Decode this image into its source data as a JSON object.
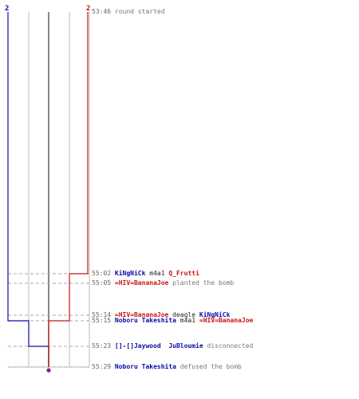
{
  "colors": {
    "ct": "#0a0aa8",
    "t": "#cc1111",
    "grid": "#bbbbbb",
    "center": "#555555",
    "dashed": "#aaaaaa",
    "bomb_marker": "#8a1a8a",
    "text": "#777777"
  },
  "score": {
    "ct": "2",
    "t": "2"
  },
  "chart_data": {
    "type": "line",
    "title": "",
    "xlabel": "",
    "ylabel": "",
    "ylim": [
      "53:46",
      "55:29"
    ],
    "series": [
      {
        "team": "ct",
        "color": "#0a0aa8",
        "points": [
          [
            "53:46",
            2
          ],
          [
            "55:14",
            2
          ],
          [
            "55:15",
            1
          ],
          [
            "55:23",
            0
          ]
        ]
      },
      {
        "team": "t",
        "color": "#cc1111",
        "points": [
          [
            "53:46",
            2
          ],
          [
            "55:02",
            1
          ],
          [
            "55:15",
            0
          ]
        ]
      }
    ]
  },
  "log": [
    {
      "time": "53:46",
      "parts": [
        {
          "text": "round started",
          "role": "plain"
        }
      ]
    },
    {
      "time": "55:02",
      "parts": [
        {
          "text": "KiNgNiCk",
          "role": "ct"
        },
        {
          "text": "m4a1",
          "role": "weapon"
        },
        {
          "text": "Q_Frutti",
          "role": "tr"
        }
      ]
    },
    {
      "time": "55:05",
      "parts": [
        {
          "text": "=HIV=BananaJoe",
          "role": "tr"
        },
        {
          "text": "planted the bomb",
          "role": "plain"
        }
      ]
    },
    {
      "time": "55:14",
      "parts": [
        {
          "text": "=HIV=BananaJoe",
          "role": "tr"
        },
        {
          "text": "deagle",
          "role": "weapon"
        },
        {
          "text": "KiNgNiCk",
          "role": "ct"
        }
      ]
    },
    {
      "time": "55:15",
      "parts": [
        {
          "text": "Noboru Takeshita",
          "role": "ct"
        },
        {
          "text": "m4a1",
          "role": "weapon"
        },
        {
          "text": "=HIV=BananaJoe",
          "role": "tr"
        }
      ]
    },
    {
      "time": "55:23",
      "parts": [
        {
          "text": "[]-[]Jaywood  JuBloumie",
          "role": "ct"
        },
        {
          "text": "disconnected",
          "role": "plain"
        }
      ]
    },
    {
      "time": "55:29",
      "parts": [
        {
          "text": "Noboru Takeshita",
          "role": "ct"
        },
        {
          "text": "defused the bomb",
          "role": "plain"
        }
      ]
    }
  ]
}
